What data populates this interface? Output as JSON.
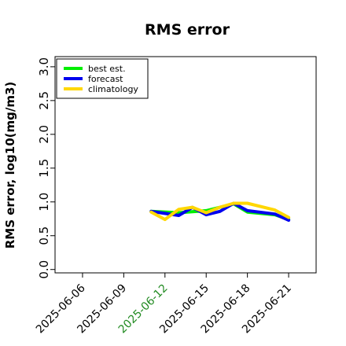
{
  "chart_data": {
    "type": "line",
    "title": "RMS error",
    "xlabel": "",
    "ylabel": "RMS error, log10(mg/m3)",
    "ylim": [
      -0.05,
      3.15
    ],
    "yticks": [
      "0.0",
      "0.5",
      "1.0",
      "1.5",
      "2.0",
      "2.5",
      "3.0"
    ],
    "xlim": [
      "2025-06-04",
      "2025-06-23"
    ],
    "xticks": [
      {
        "label": "2025-06-06",
        "color": "#000000"
      },
      {
        "label": "2025-06-09",
        "color": "#000000"
      },
      {
        "label": "2025-06-12",
        "color": "#228B22"
      },
      {
        "label": "2025-06-15",
        "color": "#000000"
      },
      {
        "label": "2025-06-18",
        "color": "#000000"
      },
      {
        "label": "2025-06-21",
        "color": "#000000"
      }
    ],
    "legend_position": "top-left",
    "grid": false,
    "series": [
      {
        "name": "best est.",
        "color": "#00ee00",
        "x": [
          "2025-06-11",
          "2025-06-13",
          "2025-06-15",
          "2025-06-17",
          "2025-06-18",
          "2025-06-20",
          "2025-06-21"
        ],
        "y": [
          0.86,
          0.84,
          0.87,
          0.97,
          0.85,
          0.81,
          0.74
        ]
      },
      {
        "name": "forecast",
        "color": "#0000ee",
        "x": [
          "2025-06-11",
          "2025-06-12",
          "2025-06-13",
          "2025-06-14",
          "2025-06-15",
          "2025-06-16",
          "2025-06-17",
          "2025-06-18",
          "2025-06-20",
          "2025-06-21"
        ],
        "y": [
          0.86,
          0.83,
          0.8,
          0.92,
          0.81,
          0.86,
          0.98,
          0.87,
          0.82,
          0.73
        ]
      },
      {
        "name": "climatology",
        "color": "#ffd700",
        "x": [
          "2025-06-11",
          "2025-06-12",
          "2025-06-13",
          "2025-06-14",
          "2025-06-15",
          "2025-06-16",
          "2025-06-17",
          "2025-06-18",
          "2025-06-20",
          "2025-06-21"
        ],
        "y": [
          0.85,
          0.74,
          0.89,
          0.92,
          0.84,
          0.92,
          0.98,
          0.98,
          0.88,
          0.77
        ]
      }
    ]
  }
}
